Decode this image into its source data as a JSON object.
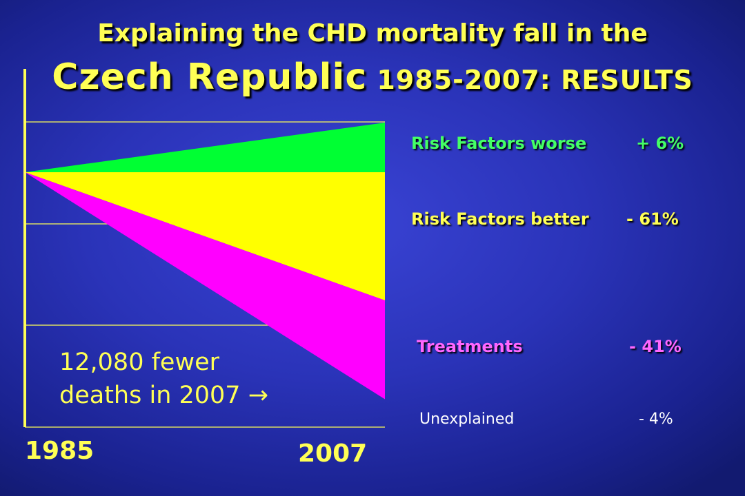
{
  "title": {
    "line1": "Explaining the CHD mortality fall in the",
    "line2_main": "Czech Republic",
    "line2_years": " 1985-2007: RESULTS"
  },
  "note": {
    "line1": "12,080 fewer",
    "line2": "deaths in 2007 →"
  },
  "chart_data": {
    "type": "area",
    "x": [
      1985,
      2007
    ],
    "x_tick_labels": [
      "1985",
      "2007"
    ],
    "series": [
      {
        "name": "Risk Factors worse",
        "value_label": "+ 6%",
        "value": 6,
        "color": "#00ff33"
      },
      {
        "name": "Risk Factors better",
        "value_label": "- 61%",
        "value": -61,
        "color": "#ffff00"
      },
      {
        "name": "Treatments",
        "value_label": "- 41%",
        "value": -41,
        "color": "#ff00ff"
      },
      {
        "name": "Unexplained",
        "value_label": "- 4%",
        "value": -4,
        "color": "#2a33b8"
      }
    ],
    "grid": true
  },
  "legend_colors": {
    "risk_worse": "#44ff66",
    "risk_better": "#ffff55",
    "treatments": "#ff66ff",
    "unexplained": "#ffffff"
  }
}
